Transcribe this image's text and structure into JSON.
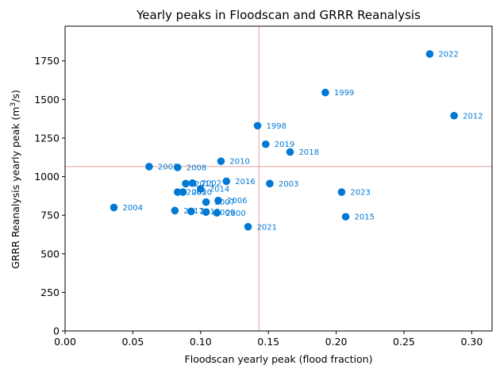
{
  "chart_data": {
    "type": "scatter",
    "title": "Yearly peaks in Floodscan and GRRR Reanalysis",
    "xlabel": "Floodscan yearly peak (flood fraction)",
    "ylabel_main": "GRRR Reanalysis yearly peak (m",
    "ylabel_sup": "3",
    "ylabel_end": "/s)",
    "xlim": [
      0.0,
      0.315
    ],
    "ylim": [
      0,
      1975
    ],
    "xticks": [
      "0.00",
      "0.05",
      "0.10",
      "0.15",
      "0.20",
      "0.25",
      "0.30"
    ],
    "yticks": [
      "0",
      "250",
      "500",
      "750",
      "1000",
      "1250",
      "1500",
      "1750"
    ],
    "grid": false,
    "reference_lines": {
      "x": 0.143,
      "y": 1065,
      "color": "#e8a0a0"
    },
    "point_color": "#0078d4",
    "points": [
      {
        "label": "2022",
        "x": 0.269,
        "y": 1795
      },
      {
        "label": "1999",
        "x": 0.192,
        "y": 1545
      },
      {
        "label": "2012",
        "x": 0.287,
        "y": 1395
      },
      {
        "label": "1998",
        "x": 0.142,
        "y": 1330
      },
      {
        "label": "2019",
        "x": 0.148,
        "y": 1210
      },
      {
        "label": "2018",
        "x": 0.166,
        "y": 1160
      },
      {
        "label": "2010",
        "x": 0.115,
        "y": 1100
      },
      {
        "label": "2001",
        "x": 0.062,
        "y": 1065
      },
      {
        "label": "2008",
        "x": 0.083,
        "y": 1060
      },
      {
        "label": "2016",
        "x": 0.119,
        "y": 970
      },
      {
        "label": "2003",
        "x": 0.151,
        "y": 955
      },
      {
        "label": "2011",
        "x": 0.089,
        "y": 955
      },
      {
        "label": "2002",
        "x": 0.094,
        "y": 958
      },
      {
        "label": "2014",
        "x": 0.1,
        "y": 920
      },
      {
        "label": "2005",
        "x": 0.083,
        "y": 900
      },
      {
        "label": "2020",
        "x": 0.087,
        "y": 900
      },
      {
        "label": "2023",
        "x": 0.204,
        "y": 900
      },
      {
        "label": "2006",
        "x": 0.113,
        "y": 845
      },
      {
        "label": "2007",
        "x": 0.104,
        "y": 835
      },
      {
        "label": "2004",
        "x": 0.036,
        "y": 800
      },
      {
        "label": "2017",
        "x": 0.081,
        "y": 780
      },
      {
        "label": "2013",
        "x": 0.093,
        "y": 775
      },
      {
        "label": "2009",
        "x": 0.104,
        "y": 770
      },
      {
        "label": "2000",
        "x": 0.112,
        "y": 765
      },
      {
        "label": "2015",
        "x": 0.207,
        "y": 740
      },
      {
        "label": "2021",
        "x": 0.135,
        "y": 675
      }
    ]
  }
}
